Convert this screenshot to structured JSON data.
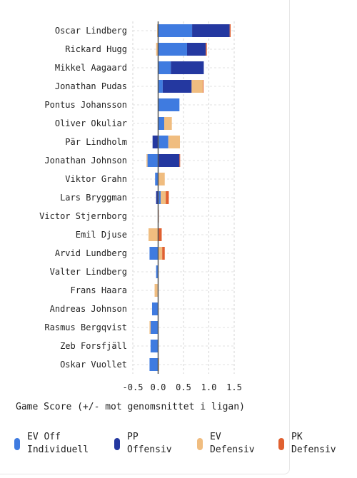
{
  "chart_data": {
    "type": "bar",
    "orientation": "horizontal",
    "stacked": true,
    "categories": [
      "Oscar Lindberg",
      "Rickard Hugg",
      "Mikkel Aagaard",
      "Jonathan Pudas",
      "Pontus Johansson",
      "Oliver Okuliar",
      "Pär Lindholm",
      "Jonathan Johnson",
      "Viktor Grahn",
      "Lars Bryggman",
      "Victor Stjernborg",
      "Emil Djuse",
      "Arvid Lundberg",
      "Valter Lindberg",
      "Frans Haara",
      "Andreas Johnson",
      "Rasmus Bergqvist",
      "Zeb Forsfjäll",
      "Oskar Vuollet"
    ],
    "series": [
      {
        "name": "EV Off Individuell",
        "color": "#3f7be0",
        "values": [
          0.67,
          0.57,
          0.25,
          0.09,
          0.42,
          0.12,
          0.2,
          -0.21,
          -0.06,
          0.05,
          0,
          0,
          -0.17,
          -0.04,
          -0.01,
          -0.12,
          -0.15,
          -0.15,
          -0.17
        ]
      },
      {
        "name": "PP Offensiv",
        "color": "#2438a0",
        "values": [
          0.74,
          0.37,
          0.65,
          0.57,
          0,
          0,
          -0.11,
          0.42,
          0,
          -0.04,
          0,
          0,
          0,
          0,
          0,
          0,
          0,
          0,
          0
        ]
      },
      {
        "name": "EV Defensiv",
        "color": "#f0bd80",
        "values": [
          -0.02,
          -0.04,
          0,
          0.22,
          0,
          0.15,
          0.23,
          -0.02,
          0.13,
          0.1,
          0,
          -0.19,
          0.08,
          0,
          -0.06,
          0,
          -0.02,
          0,
          0.02
        ]
      },
      {
        "name": "PK Defensiv",
        "color": "#e06030",
        "values": [
          0.02,
          0.02,
          0,
          0.01,
          0,
          0,
          0,
          0.01,
          0,
          0.06,
          0.01,
          0.07,
          0.05,
          0,
          0,
          0,
          0,
          0,
          0
        ]
      }
    ],
    "xlabel": "Game Score (+/- mot genomsnittet i ligan)",
    "xlim": [
      -0.5,
      1.5
    ],
    "xticks": [
      "-0.5",
      "0.0",
      "0.5",
      "1.0",
      "1.5"
    ],
    "grid": true,
    "legend": "bottom"
  },
  "legend": [
    {
      "label": "EV Off\nIndividuell",
      "color": "#3f7be0"
    },
    {
      "label": "PP\nOffensiv",
      "color": "#2438a0"
    },
    {
      "label": "EV\nDefensiv",
      "color": "#f0bd80"
    },
    {
      "label": "PK\nDefensiv",
      "color": "#e06030"
    }
  ]
}
